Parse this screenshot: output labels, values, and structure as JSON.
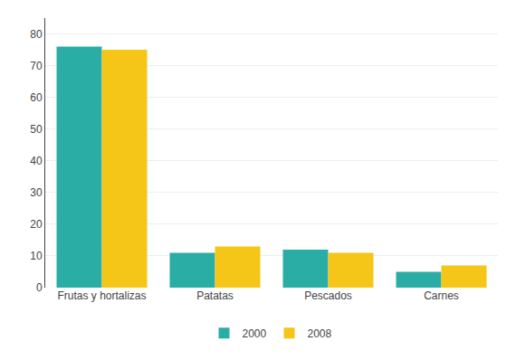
{
  "chart_data": {
    "type": "bar",
    "categories": [
      "Frutas y hortalizas",
      "Patatas",
      "Pescados",
      "Carnes"
    ],
    "series": [
      {
        "name": "2000",
        "color": "#2aada4",
        "values": [
          76,
          11,
          12,
          5
        ]
      },
      {
        "name": "2008",
        "color": "#f5c518",
        "values": [
          75,
          13,
          11,
          7
        ]
      }
    ],
    "ylim": [
      0,
      85
    ],
    "yticks": [
      0,
      10,
      20,
      30,
      40,
      50,
      60,
      70,
      80
    ],
    "grid": true,
    "legend": "bottom"
  }
}
